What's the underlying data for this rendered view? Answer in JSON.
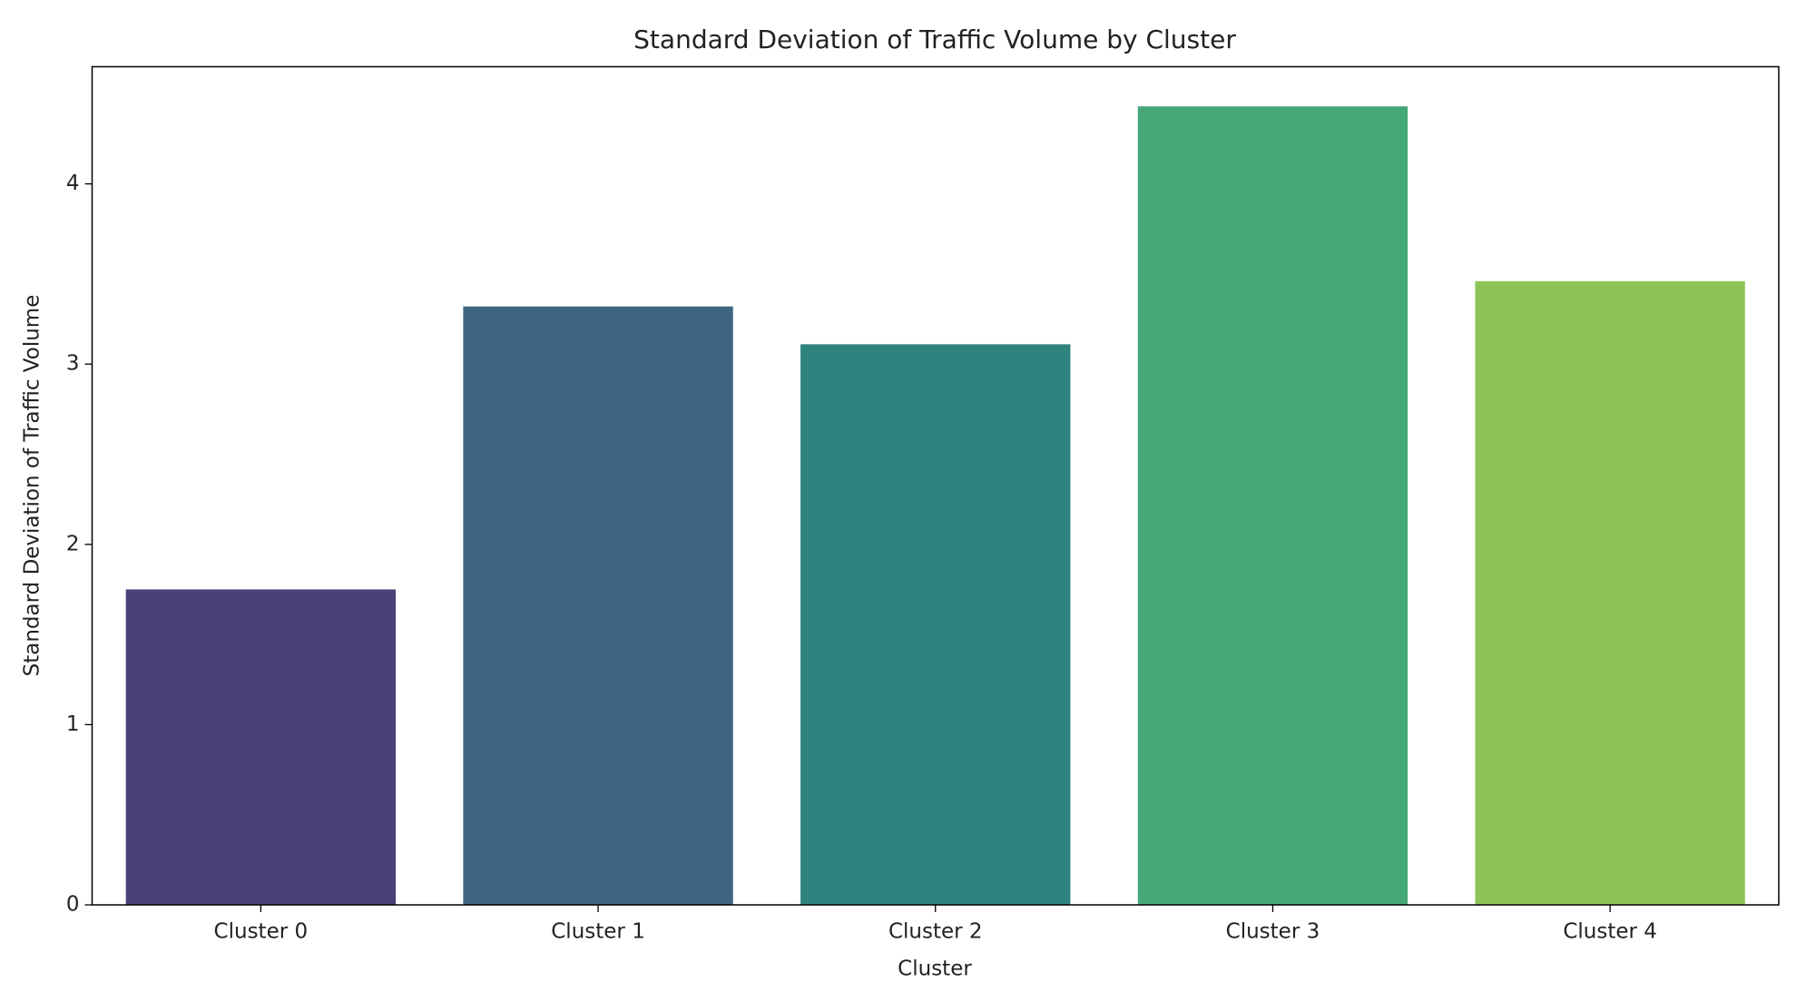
{
  "chart_data": {
    "type": "bar",
    "title": "Standard Deviation of Traffic Volume by Cluster",
    "x_label": "Cluster",
    "y_label": "Standard Deviation of Traffic Volume",
    "categories": [
      "Cluster 0",
      "Cluster 1",
      "Cluster 2",
      "Cluster 3",
      "Cluster 4"
    ],
    "values": [
      1.75,
      3.32,
      3.11,
      4.43,
      3.46
    ],
    "colors": [
      "#4a4178",
      "#3e6681",
      "#2e837e",
      "#46a879",
      "#8dc457"
    ],
    "ylim": [
      0,
      4.65
    ],
    "yticks": [
      0,
      1,
      2,
      3,
      4
    ],
    "grid": false
  }
}
